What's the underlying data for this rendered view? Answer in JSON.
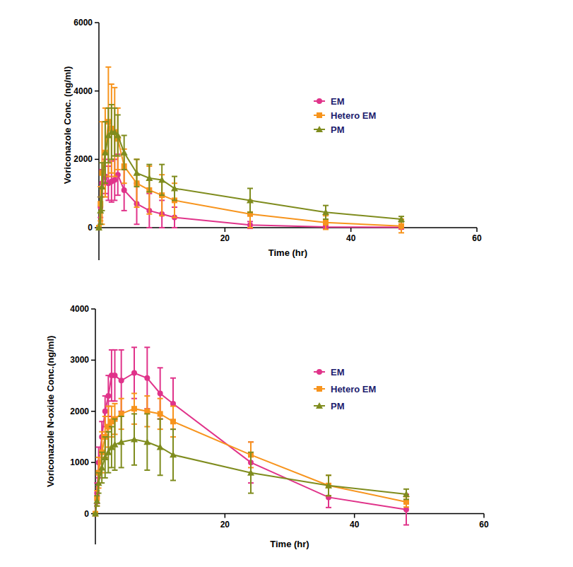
{
  "chart_data": [
    {
      "type": "line",
      "x_label": "Time (hr)",
      "y_label": "Voriconazole Conc. (ng/ml)",
      "x": [
        0,
        0.25,
        0.5,
        1,
        1.5,
        2,
        2.5,
        3,
        4,
        6,
        8,
        10,
        12,
        24,
        36,
        48
      ],
      "xlim": [
        0,
        60
      ],
      "xticks": [
        20,
        40,
        60
      ],
      "ylim": [
        -950,
        6000
      ],
      "yticks": [
        0,
        2000,
        4000,
        6000
      ],
      "legend": "right",
      "grid": false,
      "series": [
        {
          "name": "EM",
          "color": "#e0338a",
          "marker": "circle",
          "values": [
            0,
            600,
            1300,
            1500,
            1300,
            1350,
            1400,
            1550,
            1100,
            700,
            500,
            400,
            300,
            80,
            20,
            10
          ],
          "errors": [
            0,
            300,
            400,
            500,
            500,
            600,
            600,
            600,
            600,
            600,
            500,
            400,
            300,
            100,
            50,
            50
          ]
        },
        {
          "name": "Hetero EM",
          "color": "#f7941d",
          "marker": "square",
          "values": [
            0,
            700,
            1600,
            2200,
            3100,
            2900,
            2800,
            2600,
            1800,
            1300,
            1100,
            950,
            800,
            400,
            150,
            50
          ],
          "errors": [
            0,
            500,
            1500,
            1300,
            1600,
            1300,
            1300,
            900,
            500,
            700,
            700,
            600,
            500,
            400,
            200,
            200
          ]
        },
        {
          "name": "PM",
          "color": "#7f8c1e",
          "marker": "triangle",
          "values": [
            0,
            500,
            1200,
            2200,
            2700,
            2800,
            2800,
            2700,
            2200,
            1600,
            1450,
            1400,
            1150,
            800,
            450,
            250
          ],
          "errors": [
            0,
            400,
            700,
            900,
            800,
            800,
            700,
            600,
            500,
            400,
            400,
            450,
            350,
            350,
            200,
            80
          ]
        }
      ]
    },
    {
      "type": "line",
      "x_label": "Time (hr)",
      "y_label": "Voriconazole N-oxide Conc.(ng/ml)",
      "x": [
        0,
        0.25,
        0.5,
        1,
        1.5,
        2,
        2.5,
        3,
        4,
        6,
        8,
        10,
        12,
        24,
        36,
        48
      ],
      "xlim": [
        0,
        60
      ],
      "xticks": [
        20,
        40,
        60
      ],
      "ylim": [
        -600,
        4000
      ],
      "yticks": [
        0,
        1000,
        2000,
        3000,
        4000
      ],
      "legend": "right",
      "grid": false,
      "series": [
        {
          "name": "EM",
          "color": "#e0338a",
          "marker": "circle",
          "values": [
            0,
            400,
            1000,
            1500,
            2000,
            2300,
            2700,
            2700,
            2600,
            2750,
            2650,
            2350,
            2150,
            1000,
            320,
            80
          ],
          "errors": [
            0,
            200,
            300,
            300,
            300,
            400,
            500,
            500,
            600,
            500,
            600,
            500,
            500,
            400,
            200,
            300
          ]
        },
        {
          "name": "Hetero EM",
          "color": "#f7941d",
          "marker": "square",
          "values": [
            0,
            300,
            800,
            1200,
            1500,
            1700,
            1800,
            1850,
            1950,
            2050,
            2000,
            1950,
            1800,
            1150,
            550,
            230
          ],
          "errors": [
            0,
            150,
            300,
            400,
            400,
            400,
            300,
            300,
            300,
            300,
            300,
            300,
            300,
            250,
            200,
            100
          ]
        },
        {
          "name": "PM",
          "color": "#7f8c1e",
          "marker": "triangle",
          "values": [
            0,
            250,
            600,
            900,
            1100,
            1200,
            1300,
            1350,
            1400,
            1450,
            1400,
            1300,
            1150,
            800,
            550,
            380
          ],
          "errors": [
            0,
            100,
            200,
            300,
            400,
            400,
            400,
            500,
            500,
            500,
            550,
            550,
            500,
            400,
            200,
            100
          ]
        }
      ]
    }
  ]
}
